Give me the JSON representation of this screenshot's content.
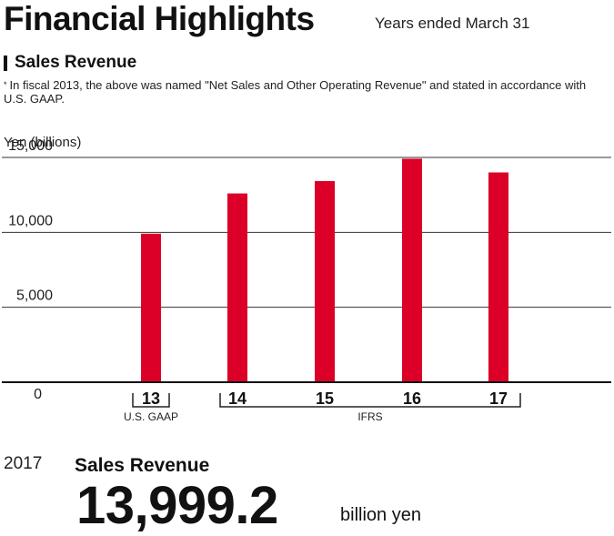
{
  "header": {
    "title": "Financial Highlights",
    "subtitle": "Years ended March 31"
  },
  "section": {
    "title": "Sales Revenue",
    "footnote_mark": "*",
    "footnote": "In fiscal 2013, the above was named \"Net Sales and Other Operating Revenue\" and stated in accordance with U.S. GAAP."
  },
  "chart_data": {
    "type": "bar",
    "ylabel": "Yen (billions)",
    "categories": [
      "13",
      "14",
      "15",
      "16",
      "17"
    ],
    "values": [
      9912,
      12597,
      13423,
      14916,
      13999
    ],
    "ylim": [
      0,
      15000
    ],
    "yticks": [
      "0",
      "5,000",
      "10,000",
      "15,000"
    ],
    "ytick_values": [
      0,
      5000,
      10000,
      15000
    ],
    "grid": true,
    "groups": [
      {
        "label": "U.S. GAAP",
        "categories": [
          "13"
        ]
      },
      {
        "label": "IFRS",
        "categories": [
          "14",
          "15",
          "16",
          "17"
        ]
      }
    ],
    "bar_color": "#DC0028"
  },
  "kpi": {
    "year": "2017",
    "label": "Sales Revenue",
    "value": "13,999.2",
    "unit": "billion yen"
  }
}
